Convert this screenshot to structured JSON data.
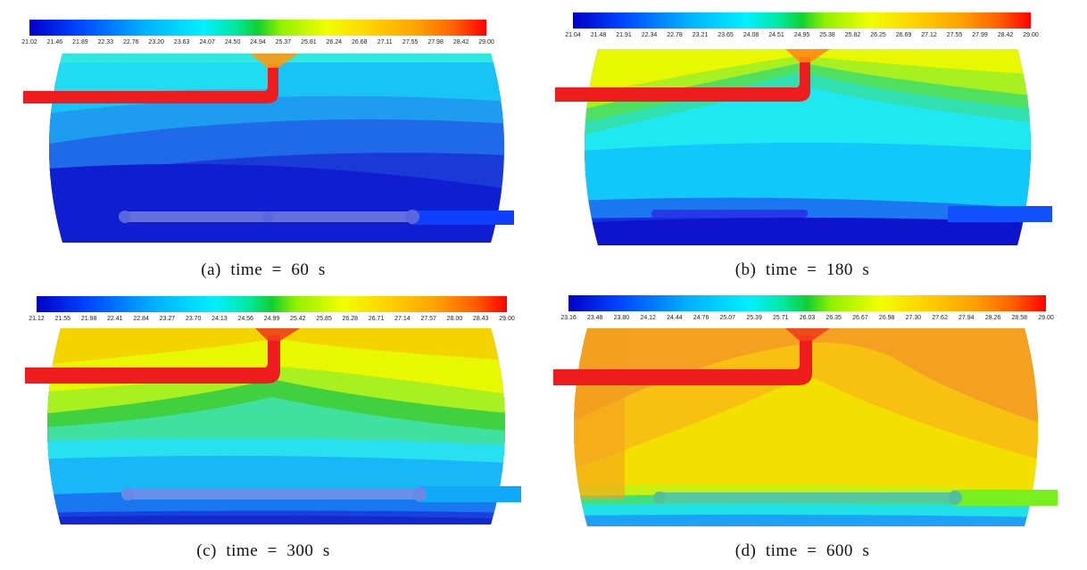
{
  "panels": [
    {
      "caption": "(a)  time  =  60  s",
      "colorbar_ticks": [
        "21.02",
        "21.46",
        "21.89",
        "22.33",
        "22.76",
        "23.20",
        "23.63",
        "24.07",
        "24.50",
        "24.94",
        "25.37",
        "25.81",
        "26.24",
        "26.68",
        "27.11",
        "27.55",
        "27.98",
        "28.42",
        "29.00"
      ]
    },
    {
      "caption": "(b)  time  =  180  s",
      "colorbar_ticks": [
        "21.04",
        "21.48",
        "21.91",
        "22.34",
        "22.78",
        "23.21",
        "23.65",
        "24.08",
        "24.51",
        "24.95",
        "25.38",
        "25.82",
        "26.25",
        "26.69",
        "27.12",
        "27.55",
        "27.99",
        "28.42",
        "29.00"
      ]
    },
    {
      "caption": "(c)  time  =  300  s",
      "colorbar_ticks": [
        "21.12",
        "21.55",
        "21.98",
        "22.41",
        "22.84",
        "23.27",
        "23.70",
        "24.13",
        "24.56",
        "24.99",
        "25.42",
        "25.85",
        "26.28",
        "26.71",
        "27.14",
        "27.57",
        "28.00",
        "28.43",
        "29.00"
      ]
    },
    {
      "caption": "(d)  time  =  600  s",
      "colorbar_ticks": [
        "23.16",
        "23.48",
        "23.80",
        "24.12",
        "24.44",
        "24.76",
        "25.07",
        "25.39",
        "25.71",
        "26.03",
        "26.35",
        "26.67",
        "26.98",
        "27.30",
        "27.62",
        "27.94",
        "28.26",
        "28.58",
        "29.00"
      ]
    }
  ],
  "colors": {
    "hot": "#ee1c1c",
    "cold": "#1515e0",
    "jet_stops": [
      "#0000c8",
      "#0050ff",
      "#00c8ff",
      "#00ffd0",
      "#10d040",
      "#c8ff00",
      "#ffff00",
      "#ffb000",
      "#ff6000",
      "#ff0000"
    ]
  }
}
